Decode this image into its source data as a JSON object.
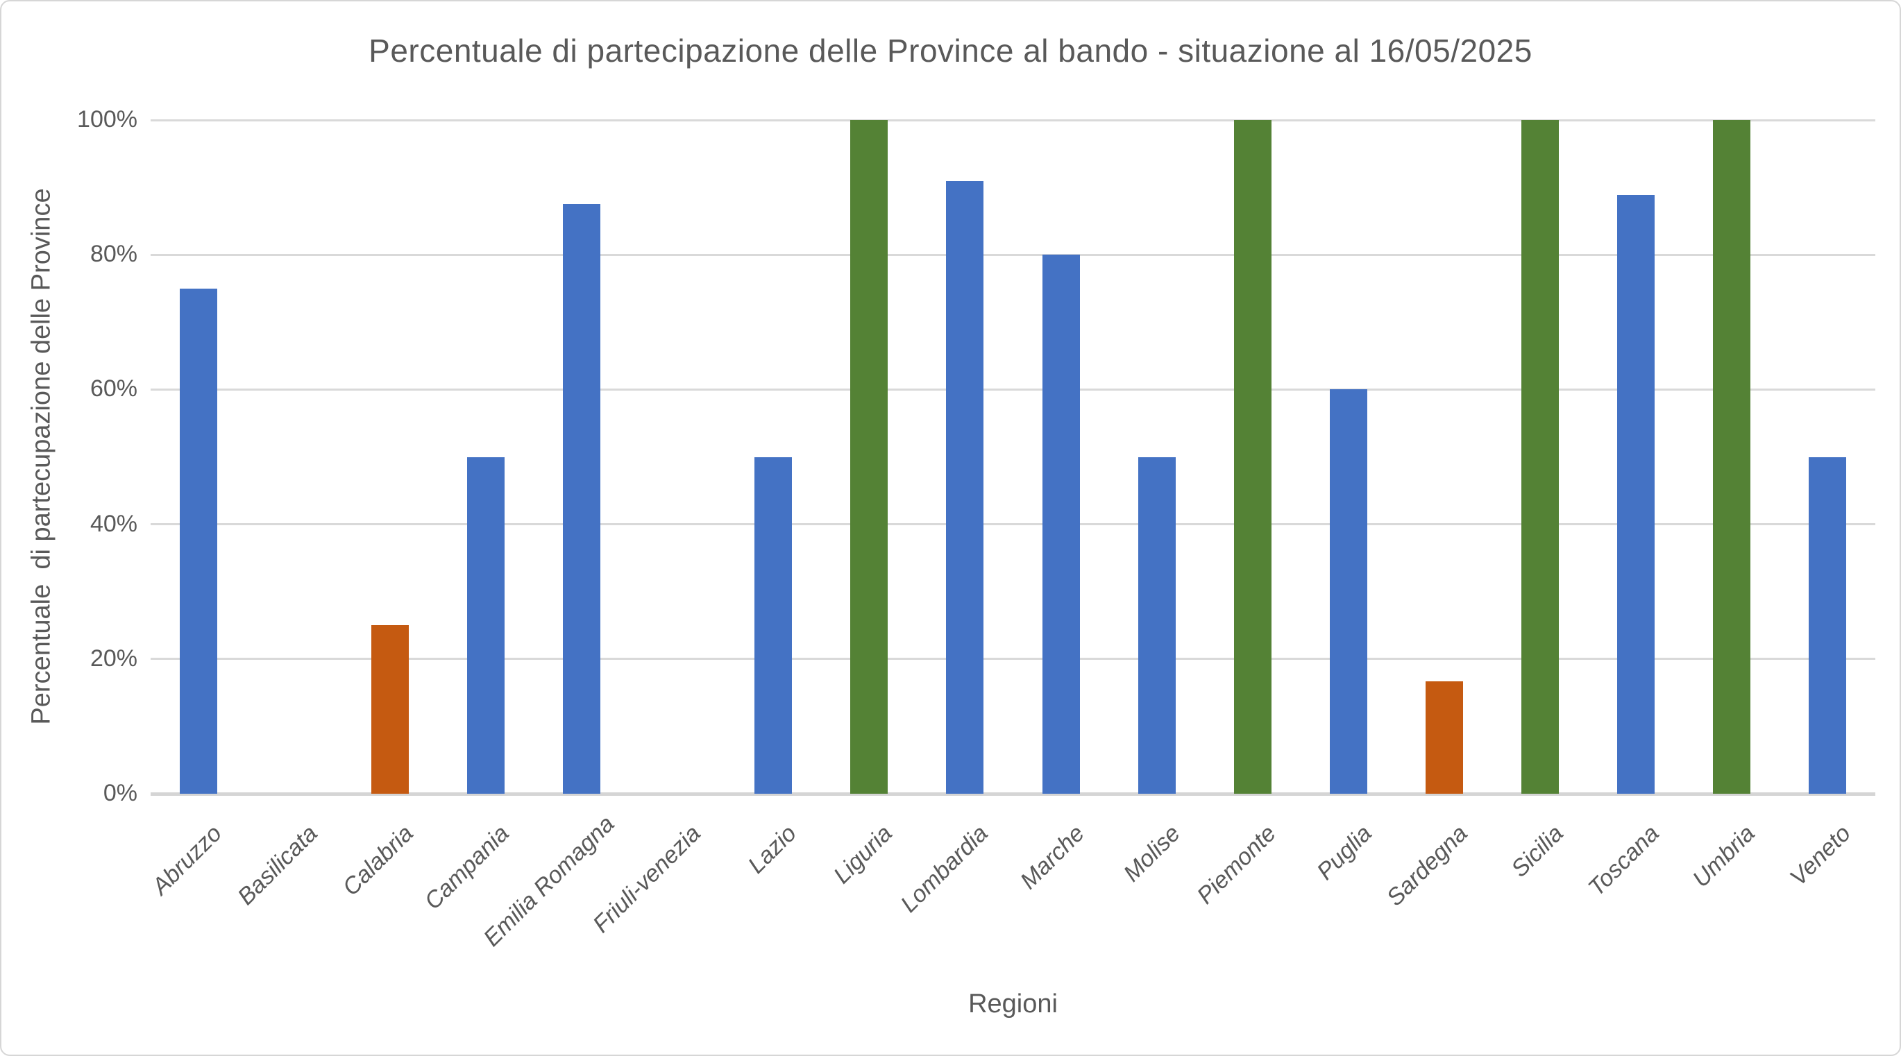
{
  "title": "Percentuale di partecipazione delle Province al bando - situazione al 16/05/2025",
  "chart_data": {
    "type": "bar",
    "title": "Percentuale di partecipazione delle Province al bando - situazione al 16/05/2025",
    "xlabel": "Regioni",
    "ylabel": "Percentuale  di partecupazione delle Province",
    "ylim": [
      0,
      100
    ],
    "ytick_values": [
      0,
      20,
      40,
      60,
      80,
      100
    ],
    "ytick_labels": [
      "0%",
      "20%",
      "40%",
      "60%",
      "80%",
      "100%"
    ],
    "grid": true,
    "legend": "none",
    "categories": [
      "Abruzzo",
      "Basilicata",
      "Calabria",
      "Campania",
      "Emilia Romagna",
      "Friuli-venezia",
      "Lazio",
      "Liguria",
      "Lombardia",
      "Marche",
      "Molise",
      "Piemonte",
      "Puglia",
      "Sardegna",
      "Sicilia",
      "Toscana",
      "Umbria",
      "Veneto"
    ],
    "values": [
      75,
      0,
      25,
      50,
      87.5,
      0,
      50,
      100,
      90.9,
      80,
      50,
      100,
      60,
      16.7,
      100,
      88.9,
      100,
      50
    ],
    "bar_colors": [
      "#4472C4",
      "#4472C4",
      "#C55A11",
      "#4472C4",
      "#4472C4",
      "#4472C4",
      "#4472C4",
      "#548235",
      "#4472C4",
      "#4472C4",
      "#4472C4",
      "#548235",
      "#4472C4",
      "#C55A11",
      "#548235",
      "#4472C4",
      "#548235",
      "#4472C4"
    ],
    "palette": {
      "partial": "#4472C4",
      "low": "#C55A11",
      "complete": "#548235"
    }
  },
  "colors": {
    "text": "#595959",
    "gridline": "#D9D9D9",
    "background": "#FFFFFF",
    "frame_border": "#D6D6D6"
  }
}
